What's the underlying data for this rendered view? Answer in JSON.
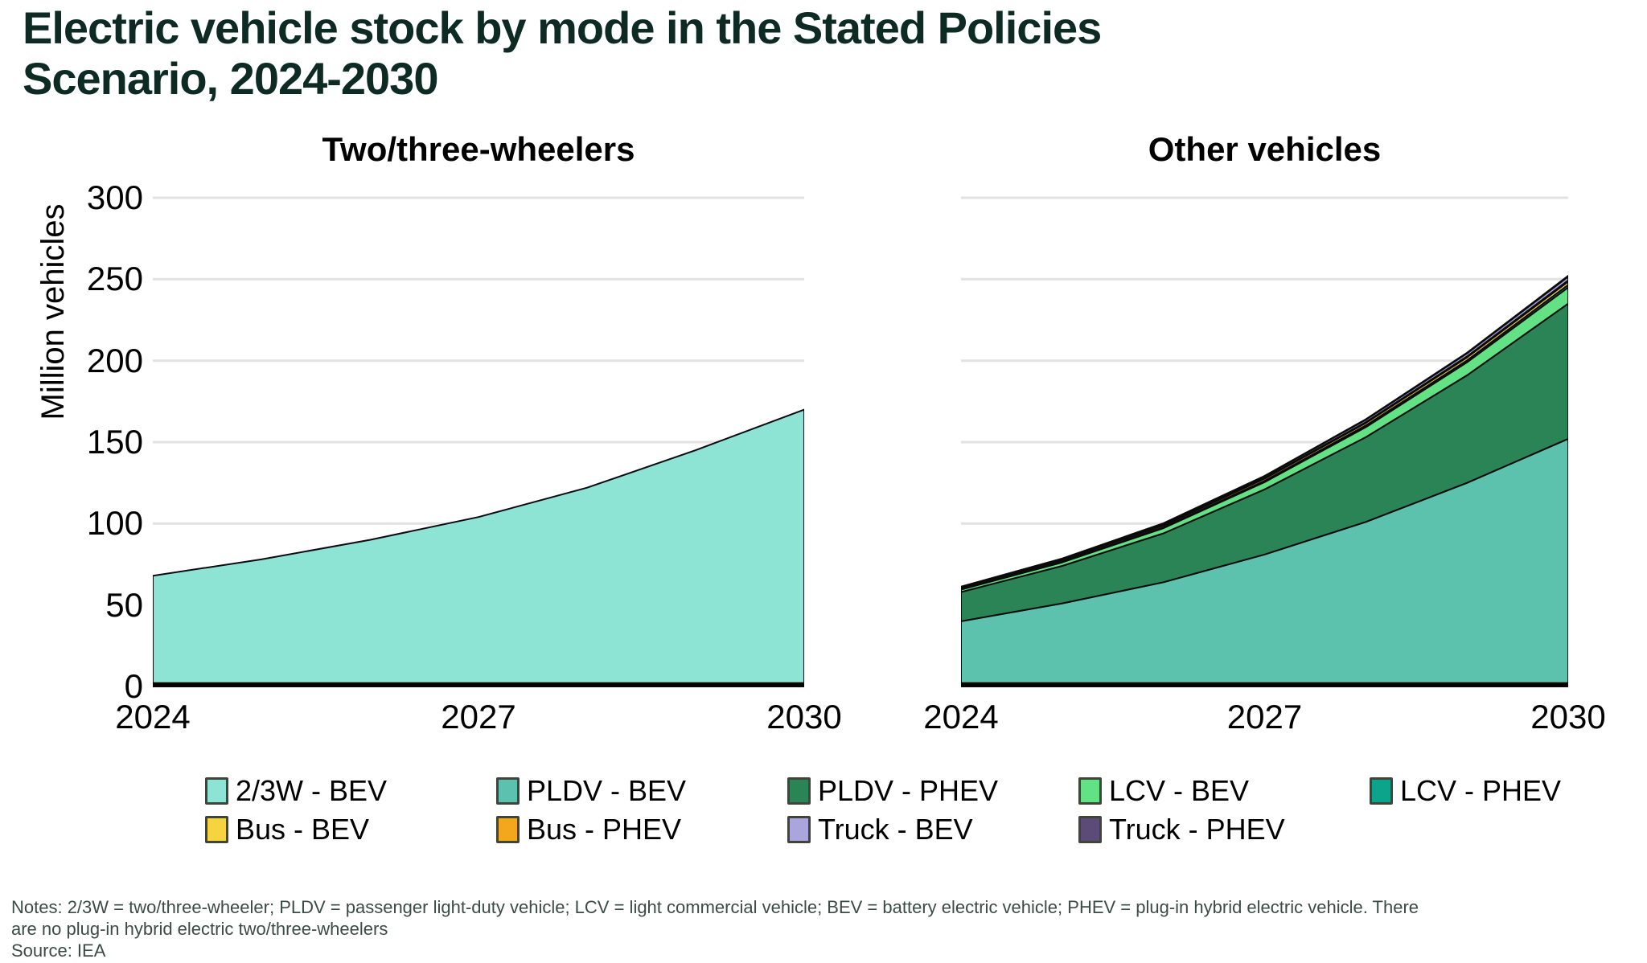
{
  "page": {
    "title_line1": "Electric vehicle stock by mode in the Stated Policies",
    "title_line2": "Scenario, 2024-2030",
    "notes": "Notes: 2/3W = two/three-wheeler; PLDV = passenger light-duty vehicle; LCV = light commercial vehicle; BEV = battery electric vehicle; PHEV = plug-in hybrid electric vehicle. There are no plug-in hybrid electric two/three-wheelers",
    "source": "Source: IEA"
  },
  "axis": {
    "y_label": "Million vehicles",
    "y_ticks": [
      0,
      50,
      100,
      150,
      200,
      250,
      300
    ],
    "ylim": [
      0,
      300
    ],
    "x_tick_labels": [
      "2024",
      "2027",
      "2030"
    ]
  },
  "legend": [
    {
      "label": "2/3W - BEV",
      "color": "#8DE3D4"
    },
    {
      "label": "PLDV - BEV",
      "color": "#5CC2AD"
    },
    {
      "label": "PLDV - PHEV",
      "color": "#2B8456"
    },
    {
      "label": "LCV - BEV",
      "color": "#62E285"
    },
    {
      "label": "LCV - PHEV",
      "color": "#0CA58C"
    },
    {
      "label": "Bus - BEV",
      "color": "#F6D43F"
    },
    {
      "label": "Bus - PHEV",
      "color": "#F2A71C"
    },
    {
      "label": "Truck - BEV",
      "color": "#ABA5DE"
    },
    {
      "label": "Truck - PHEV",
      "color": "#5C4A78"
    }
  ],
  "style": {
    "gridline_color": "#e2e2e2",
    "area_stroke_color": "#0b0b0b",
    "baseline_color": "#000000"
  },
  "chart_data": [
    {
      "type": "area",
      "stacked": true,
      "title": "Two/three-wheelers",
      "ylabel": "Million vehicles",
      "ylim": [
        0,
        300
      ],
      "grid": "horizontal",
      "legend_position": "bottom",
      "x": [
        2024,
        2025,
        2026,
        2027,
        2028,
        2029,
        2030
      ],
      "x_tick_labels": [
        "2024",
        "2027",
        "2030"
      ],
      "series": [
        {
          "name": "2/3W - BEV",
          "color": "#8DE3D4",
          "values": [
            68,
            78,
            90,
            104,
            122,
            145,
            170
          ]
        }
      ]
    },
    {
      "type": "area",
      "stacked": true,
      "title": "Other vehicles",
      "ylabel": "Million vehicles",
      "ylim": [
        0,
        300
      ],
      "grid": "horizontal",
      "legend_position": "bottom",
      "x": [
        2024,
        2025,
        2026,
        2027,
        2028,
        2029,
        2030
      ],
      "x_tick_labels": [
        "2024",
        "2027",
        "2030"
      ],
      "series": [
        {
          "name": "PLDV - BEV",
          "color": "#5CC2AD",
          "values": [
            40,
            51,
            64,
            81,
            101,
            125,
            152
          ]
        },
        {
          "name": "PLDV - PHEV",
          "color": "#2B8456",
          "values": [
            18,
            23,
            30,
            40,
            52,
            66,
            83
          ]
        },
        {
          "name": "LCV - BEV",
          "color": "#62E285",
          "values": [
            1.5,
            2.2,
            3.2,
            4.5,
            6.2,
            8,
            10
          ]
        },
        {
          "name": "LCV - PHEV",
          "color": "#0CA58C",
          "values": [
            0.3,
            0.4,
            0.55,
            0.75,
            1,
            1.2,
            1.5
          ]
        },
        {
          "name": "Bus - BEV",
          "color": "#F6D43F",
          "values": [
            0.8,
            0.95,
            1.1,
            1.3,
            1.55,
            1.8,
            2.1
          ]
        },
        {
          "name": "Bus - PHEV",
          "color": "#F2A71C",
          "values": [
            0.2,
            0.25,
            0.3,
            0.4,
            0.5,
            0.6,
            0.7
          ]
        },
        {
          "name": "Truck - BEV",
          "color": "#ABA5DE",
          "values": [
            0.4,
            0.6,
            0.85,
            1.1,
            1.45,
            1.85,
            2.3
          ]
        },
        {
          "name": "Truck - PHEV",
          "color": "#5C4A78",
          "values": [
            0.1,
            0.15,
            0.2,
            0.25,
            0.32,
            0.4,
            0.5
          ]
        }
      ]
    }
  ]
}
